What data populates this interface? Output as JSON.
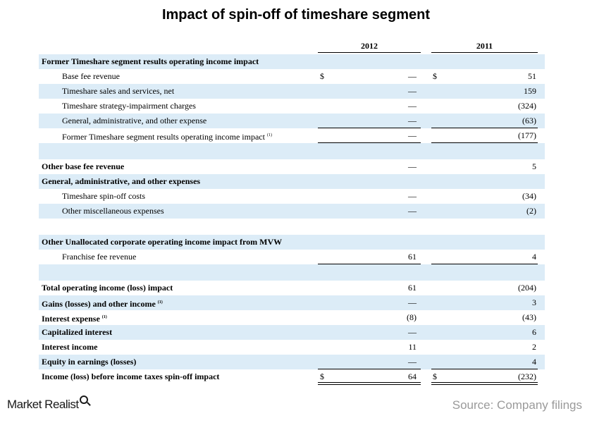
{
  "title": "Impact of spin-off of timeshare segment",
  "columns": {
    "y2012": "2012",
    "y2011": "2011"
  },
  "rows": [
    {
      "label": "Former Timeshare segment results operating income impact",
      "v2012": "",
      "v2011": "",
      "d2012": "",
      "d2011": "",
      "sup": ""
    },
    {
      "label": "Base fee revenue",
      "v2012": "—",
      "v2011": "51",
      "d2012": "$",
      "d2011": "$",
      "sup": ""
    },
    {
      "label": "Timeshare sales and services, net",
      "v2012": "—",
      "v2011": "159",
      "d2012": "",
      "d2011": "",
      "sup": ""
    },
    {
      "label": "Timeshare strategy-impairment charges",
      "v2012": "—",
      "v2011": "(324)",
      "d2012": "",
      "d2011": "",
      "sup": ""
    },
    {
      "label": "General, administrative, and other expense",
      "v2012": "—",
      "v2011": "(63)",
      "d2012": "",
      "d2011": "",
      "sup": ""
    },
    {
      "label": "Former Timeshare segment results operating income impact",
      "v2012": "—",
      "v2011": "(177)",
      "d2012": "",
      "d2011": "",
      "sup": "(1)"
    },
    {
      "label": "",
      "v2012": "",
      "v2011": "",
      "d2012": "",
      "d2011": "",
      "sup": ""
    },
    {
      "label": "Other base fee revenue",
      "v2012": "—",
      "v2011": "5",
      "d2012": "",
      "d2011": "",
      "sup": ""
    },
    {
      "label": "General, administrative, and other expenses",
      "v2012": "",
      "v2011": "",
      "d2012": "",
      "d2011": "",
      "sup": ""
    },
    {
      "label": "Timeshare spin-off costs",
      "v2012": "—",
      "v2011": "(34)",
      "d2012": "",
      "d2011": "",
      "sup": ""
    },
    {
      "label": "Other miscellaneous expenses",
      "v2012": "—",
      "v2011": "(2)",
      "d2012": "",
      "d2011": "",
      "sup": ""
    },
    {
      "label": "",
      "v2012": "",
      "v2011": "",
      "d2012": "",
      "d2011": "",
      "sup": ""
    },
    {
      "label": "Other Unallocated corporate operating income impact from MVW",
      "v2012": "",
      "v2011": "",
      "d2012": "",
      "d2011": "",
      "sup": ""
    },
    {
      "label": "Franchise fee revenue",
      "v2012": "61",
      "v2011": "4",
      "d2012": "",
      "d2011": "",
      "sup": ""
    },
    {
      "label": "",
      "v2012": "",
      "v2011": "",
      "d2012": "",
      "d2011": "",
      "sup": ""
    },
    {
      "label": "Total operating income (loss) impact",
      "v2012": "61",
      "v2011": "(204)",
      "d2012": "",
      "d2011": "",
      "sup": ""
    },
    {
      "label": "Gains (losses) and other income",
      "v2012": "—",
      "v2011": "3",
      "d2012": "",
      "d2011": "",
      "sup": "(1)"
    },
    {
      "label": "Interest expense",
      "v2012": "(8)",
      "v2011": "(43)",
      "d2012": "",
      "d2011": "",
      "sup": "(1)"
    },
    {
      "label": "Capitalized interest",
      "v2012": "—",
      "v2011": "6",
      "d2012": "",
      "d2011": "",
      "sup": ""
    },
    {
      "label": "Interest income",
      "v2012": "11",
      "v2011": "2",
      "d2012": "",
      "d2011": "",
      "sup": ""
    },
    {
      "label": "Equity in earnings (losses)",
      "v2012": "—",
      "v2011": "4",
      "d2012": "",
      "d2011": "",
      "sup": ""
    },
    {
      "label": "Income (loss) before income taxes spin-off impact",
      "v2012": "64",
      "v2011": "(232)",
      "d2012": "$",
      "d2011": "$",
      "sup": ""
    }
  ],
  "footer": {
    "brand": "Market Realist",
    "brand_icon": "magnifier-icon",
    "source": "Source: Company filings"
  }
}
